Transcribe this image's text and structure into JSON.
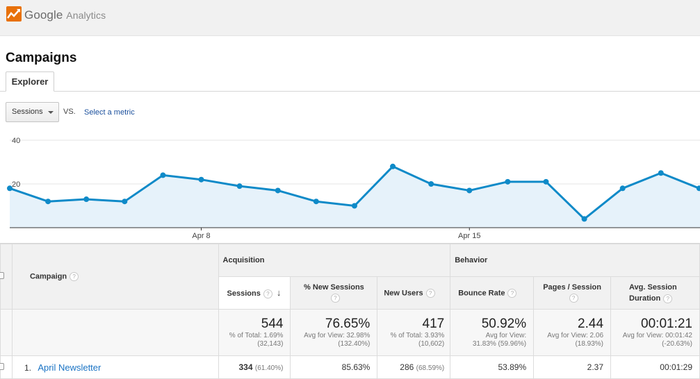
{
  "app": {
    "brand": "Google",
    "product": "Analytics"
  },
  "page": {
    "title": "Campaigns"
  },
  "tabs": [
    {
      "label": "Explorer"
    }
  ],
  "controls": {
    "metric": "Sessions",
    "vs": "VS.",
    "select_metric": "Select a metric"
  },
  "colors": {
    "line": "#0f8ac8",
    "fill": "#e6f2fa",
    "link": "#1a73c4"
  },
  "chart_data": {
    "type": "area",
    "series": [
      {
        "values": [
          18,
          12,
          13,
          12,
          24,
          22,
          19,
          17,
          12,
          10,
          28,
          20,
          17,
          21,
          21,
          4,
          18,
          25,
          18,
          22
        ]
      }
    ],
    "ylim": [
      0,
      40
    ],
    "y_ticks": [
      "40",
      "20"
    ],
    "x_tick_labels": [
      "Apr 8",
      "Apr 15"
    ],
    "grid": true
  },
  "table": {
    "groups": {
      "acquisition": "Acquisition",
      "behavior": "Behavior"
    },
    "columns": {
      "campaign": "Campaign",
      "sessions": "Sessions",
      "new_sessions": "% New Sessions",
      "new_users": "New Users",
      "bounce": "Bounce Rate",
      "pages": "Pages / Session",
      "duration": "Avg. Session Duration"
    },
    "totals": {
      "sessions": {
        "value": "544",
        "sub1": "% of Total: 1.69%",
        "sub2": "(32,143)"
      },
      "new_sessions": {
        "value": "76.65%",
        "sub1": "Avg for View: 32.98%",
        "sub2": "(132.40%)"
      },
      "new_users": {
        "value": "417",
        "sub1": "% of Total: 3.93%",
        "sub2": "(10,602)"
      },
      "bounce": {
        "value": "50.92%",
        "sub1": "Avg for View:",
        "sub2": "31.83% (59.96%)"
      },
      "pages": {
        "value": "2.44",
        "sub1": "Avg for View: 2.06",
        "sub2": "(18.93%)"
      },
      "duration": {
        "value": "00:01:21",
        "sub1": "Avg for View: 00:01:42",
        "sub2": "(-20.63%)"
      }
    },
    "rows": [
      {
        "index": "1.",
        "campaign": "April Newsletter",
        "sessions": "334",
        "sessions_pct": "(61.40%)",
        "new_sessions": "85.63%",
        "new_users": "286",
        "new_users_pct": "(68.59%)",
        "bounce": "53.89%",
        "pages": "2.37",
        "duration": "00:01:29"
      }
    ]
  }
}
